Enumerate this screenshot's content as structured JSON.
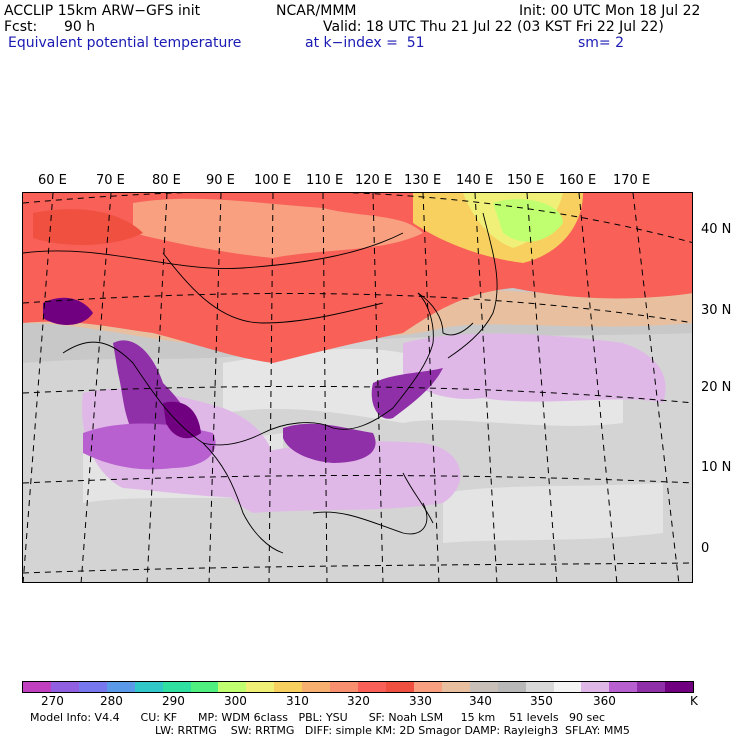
{
  "header": {
    "model": "ACCLIP 15km ARW−GFS init",
    "org": "NCAR/MMM",
    "init": "Init: 00 UTC Mon 18 Jul 22",
    "fcst_label": "Fcst:",
    "fcst_value": "90 h",
    "valid": "Valid: 18 UTC Thu 21 Jul 22 (03 KST Fri 22 Jul 22)",
    "field": "Equivalent potential temperature",
    "level": "at k−index =  51",
    "smoothing": "sm= 2"
  },
  "map": {
    "lon_labels": [
      "60 E",
      "70 E",
      "80 E",
      "90 E",
      "100 E",
      "110 E",
      "120 E",
      "130 E",
      "140 E",
      "150 E",
      "160 E",
      "170 E"
    ],
    "lat_labels": [
      "40 N",
      "30 N",
      "20 N",
      "10 N",
      "0"
    ]
  },
  "colorbar": {
    "colors": [
      "#c040c0",
      "#9060e0",
      "#7878ee",
      "#5a9ae8",
      "#30c8c8",
      "#30e0a0",
      "#50f080",
      "#c0ff70",
      "#f0f078",
      "#f8d060",
      "#f8b070",
      "#f89070",
      "#f86058",
      "#f05040",
      "#f8a080",
      "#e8c0a0",
      "#c8c0b8",
      "#b8b8b8",
      "#d8d8d8",
      "#f4f4f4",
      "#e0b8e8",
      "#b860d0",
      "#9030a8",
      "#700080"
    ],
    "ticks": [
      "270",
      "280",
      "290",
      "300",
      "310",
      "320",
      "330",
      "340",
      "350",
      "360"
    ],
    "unit": "K"
  },
  "footer": {
    "line1": "Model Info: V4.4      CU: KF      MP: WDM 6class   PBL: YSU      SF: Noah LSM     15 km    51 levels   90 sec",
    "line2": "LW: RRTMG    SW: RRTMG   DIFF: simple KM: 2D Smagor DAMP: Rayleigh3  SFLAY: MM5"
  }
}
